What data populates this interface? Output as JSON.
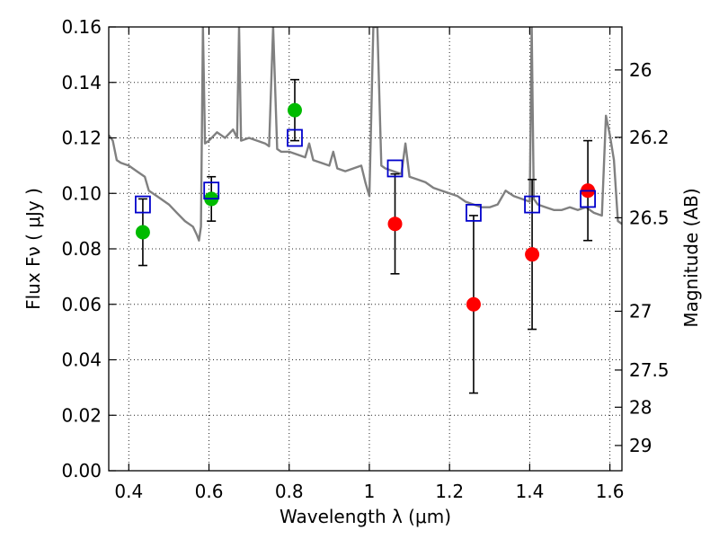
{
  "chart_data": {
    "type": "scatter",
    "title": "",
    "xlabel": "Wavelength  λ (μm)",
    "ylabel": "Flux  Fν  ( μJy )",
    "y2label": "Magnitude (AB)",
    "xlim": [
      0.35,
      1.63
    ],
    "ylim": [
      0.0,
      0.16
    ],
    "grid": true,
    "x_ticks": [
      0.4,
      0.6,
      0.8,
      1.0,
      1.2,
      1.4,
      1.6
    ],
    "x_tick_labels": [
      "0.4",
      "0.6",
      "0.8",
      "1",
      "1.2",
      "1.4",
      "1.6"
    ],
    "y_ticks": [
      0.0,
      0.02,
      0.04,
      0.06,
      0.08,
      0.1,
      0.12,
      0.14,
      0.16
    ],
    "y_tick_labels": [
      "0.00",
      "0.02",
      "0.04",
      "0.06",
      "0.08",
      "0.10",
      "0.12",
      "0.14",
      "0.16"
    ],
    "y2_ticks": [
      {
        "label": "26",
        "flux": 0.1445
      },
      {
        "label": "26.2",
        "flux": 0.1202
      },
      {
        "label": "26.5",
        "flux": 0.0912
      },
      {
        "label": "27",
        "flux": 0.0575
      },
      {
        "label": "27.5",
        "flux": 0.0363
      },
      {
        "label": "28",
        "flux": 0.0229
      },
      {
        "label": "29",
        "flux": 0.0091
      }
    ],
    "colors": {
      "spectrum": "#808080",
      "optical": "#00bb00",
      "infrared": "#ff0000",
      "model": "#0000cc",
      "errorbar": "#000000"
    },
    "series": [
      {
        "kind": "line",
        "points": [
          [
            0.35,
            0.121
          ],
          [
            0.36,
            0.119
          ],
          [
            0.37,
            0.112
          ],
          [
            0.38,
            0.111
          ],
          [
            0.4,
            0.11
          ],
          [
            0.42,
            0.108
          ],
          [
            0.44,
            0.106
          ],
          [
            0.45,
            0.101
          ],
          [
            0.47,
            0.099
          ],
          [
            0.5,
            0.096
          ],
          [
            0.52,
            0.093
          ],
          [
            0.54,
            0.09
          ],
          [
            0.56,
            0.088
          ],
          [
            0.57,
            0.085
          ],
          [
            0.575,
            0.083
          ],
          [
            0.58,
            0.088
          ],
          [
            0.585,
            0.16
          ],
          [
            0.59,
            0.118
          ],
          [
            0.6,
            0.119
          ],
          [
            0.62,
            0.122
          ],
          [
            0.64,
            0.12
          ],
          [
            0.66,
            0.123
          ],
          [
            0.67,
            0.12
          ],
          [
            0.675,
            0.16
          ],
          [
            0.68,
            0.119
          ],
          [
            0.7,
            0.12
          ],
          [
            0.72,
            0.119
          ],
          [
            0.74,
            0.118
          ],
          [
            0.75,
            0.117
          ],
          [
            0.76,
            0.16
          ],
          [
            0.77,
            0.116
          ],
          [
            0.78,
            0.115
          ],
          [
            0.8,
            0.115
          ],
          [
            0.82,
            0.114
          ],
          [
            0.84,
            0.113
          ],
          [
            0.85,
            0.118
          ],
          [
            0.86,
            0.112
          ],
          [
            0.88,
            0.111
          ],
          [
            0.9,
            0.11
          ],
          [
            0.91,
            0.115
          ],
          [
            0.92,
            0.109
          ],
          [
            0.94,
            0.108
          ],
          [
            0.96,
            0.109
          ],
          [
            0.98,
            0.11
          ],
          [
            0.99,
            0.104
          ],
          [
            1.0,
            0.099
          ],
          [
            1.01,
            0.16
          ],
          [
            1.02,
            0.16
          ],
          [
            1.03,
            0.11
          ],
          [
            1.04,
            0.109
          ],
          [
            1.06,
            0.108
          ],
          [
            1.08,
            0.107
          ],
          [
            1.09,
            0.118
          ],
          [
            1.1,
            0.106
          ],
          [
            1.12,
            0.105
          ],
          [
            1.14,
            0.104
          ],
          [
            1.16,
            0.102
          ],
          [
            1.18,
            0.101
          ],
          [
            1.2,
            0.1
          ],
          [
            1.22,
            0.099
          ],
          [
            1.24,
            0.097
          ],
          [
            1.26,
            0.096
          ],
          [
            1.28,
            0.095
          ],
          [
            1.3,
            0.095
          ],
          [
            1.32,
            0.096
          ],
          [
            1.34,
            0.101
          ],
          [
            1.36,
            0.099
          ],
          [
            1.38,
            0.098
          ],
          [
            1.4,
            0.097
          ],
          [
            1.405,
            0.16
          ],
          [
            1.41,
            0.098
          ],
          [
            1.42,
            0.096
          ],
          [
            1.44,
            0.095
          ],
          [
            1.46,
            0.094
          ],
          [
            1.48,
            0.094
          ],
          [
            1.5,
            0.095
          ],
          [
            1.52,
            0.094
          ],
          [
            1.54,
            0.095
          ],
          [
            1.56,
            0.093
          ],
          [
            1.58,
            0.092
          ],
          [
            1.59,
            0.128
          ],
          [
            1.6,
            0.121
          ],
          [
            1.61,
            0.112
          ],
          [
            1.62,
            0.09
          ],
          [
            1.63,
            0.089
          ]
        ]
      },
      {
        "kind": "points",
        "marker": "circle",
        "points": [
          {
            "x": 0.435,
            "y": 0.086,
            "err": 0.012
          },
          {
            "x": 0.606,
            "y": 0.098,
            "err": 0.008
          },
          {
            "x": 0.814,
            "y": 0.13,
            "err": 0.011
          }
        ]
      },
      {
        "kind": "points",
        "marker": "circle",
        "points": [
          {
            "x": 1.064,
            "y": 0.089,
            "err": 0.018
          },
          {
            "x": 1.26,
            "y": 0.06,
            "err": 0.032
          },
          {
            "x": 1.406,
            "y": 0.078,
            "err": 0.027
          },
          {
            "x": 1.545,
            "y": 0.101,
            "err": 0.018
          }
        ]
      },
      {
        "kind": "points",
        "marker": "open-square",
        "points": [
          {
            "x": 0.435,
            "y": 0.096
          },
          {
            "x": 0.606,
            "y": 0.101
          },
          {
            "x": 0.814,
            "y": 0.12
          },
          {
            "x": 1.064,
            "y": 0.109
          },
          {
            "x": 1.26,
            "y": 0.093
          },
          {
            "x": 1.406,
            "y": 0.096
          },
          {
            "x": 1.545,
            "y": 0.098
          }
        ]
      }
    ]
  }
}
